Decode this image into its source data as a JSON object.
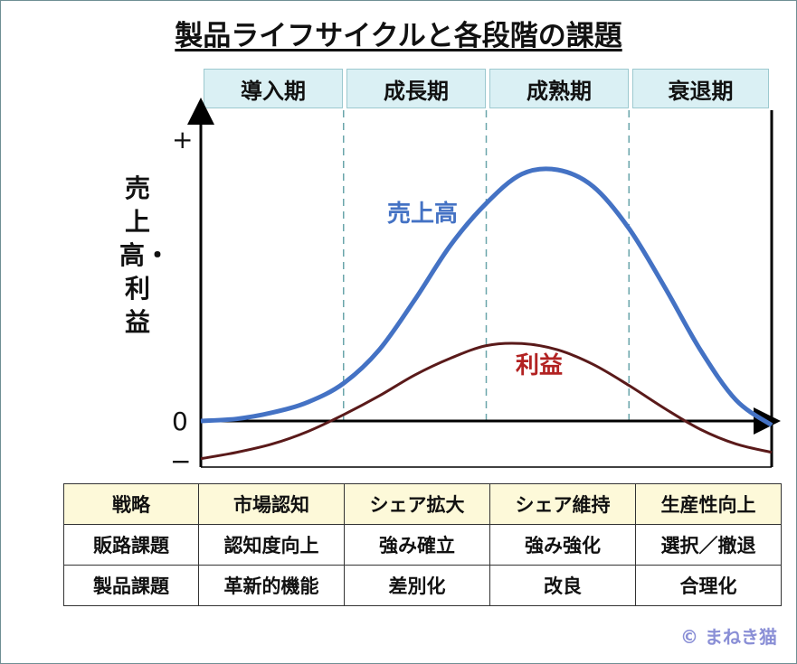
{
  "title": "製品ライフサイクルと各段階の課題",
  "phases": [
    "導入期",
    "成長期",
    "成熟期",
    "衰退期"
  ],
  "colors": {
    "sales": "#4472c4",
    "profit": "#5a1a1a",
    "phase_bg": "#daf0f4",
    "table_head_bg": "#fdf9d9",
    "copyright": "#8a8fd6"
  },
  "chart_data": {
    "type": "line",
    "ylabel": "売上高・利益",
    "y_plus_label": "+",
    "y_zero_label": "0",
    "y_minus_label": "−",
    "ylim": [
      -1,
      6.5
    ],
    "x": [
      0,
      0.5,
      1,
      1.5,
      2,
      2.5,
      3,
      3.5,
      4,
      4.5,
      5,
      5.5,
      6,
      6.5,
      7,
      7.5,
      8
    ],
    "series": [
      {
        "name": "売上高",
        "values": [
          0,
          0.05,
          0.2,
          0.45,
          0.9,
          1.7,
          2.9,
          4.2,
          5.2,
          5.9,
          6.0,
          5.6,
          4.6,
          3.2,
          1.7,
          0.5,
          -0.1
        ]
      },
      {
        "name": "利益",
        "values": [
          -0.9,
          -0.75,
          -0.55,
          -0.25,
          0.15,
          0.6,
          1.1,
          1.5,
          1.8,
          1.85,
          1.7,
          1.35,
          0.85,
          0.3,
          -0.2,
          -0.55,
          -0.75
        ]
      }
    ],
    "phase_boundaries": [
      2,
      4,
      6
    ]
  },
  "table": {
    "header": [
      "戦略",
      "市場認知",
      "シェア拡大",
      "シェア維持",
      "生産性向上"
    ],
    "rows": [
      [
        "販路課題",
        "認知度向上",
        "強み確立",
        "強み強化",
        "選択／撤退"
      ],
      [
        "製品課題",
        "革新的機能",
        "差別化",
        "改良",
        "合理化"
      ]
    ]
  },
  "copyright": "© まねき猫"
}
